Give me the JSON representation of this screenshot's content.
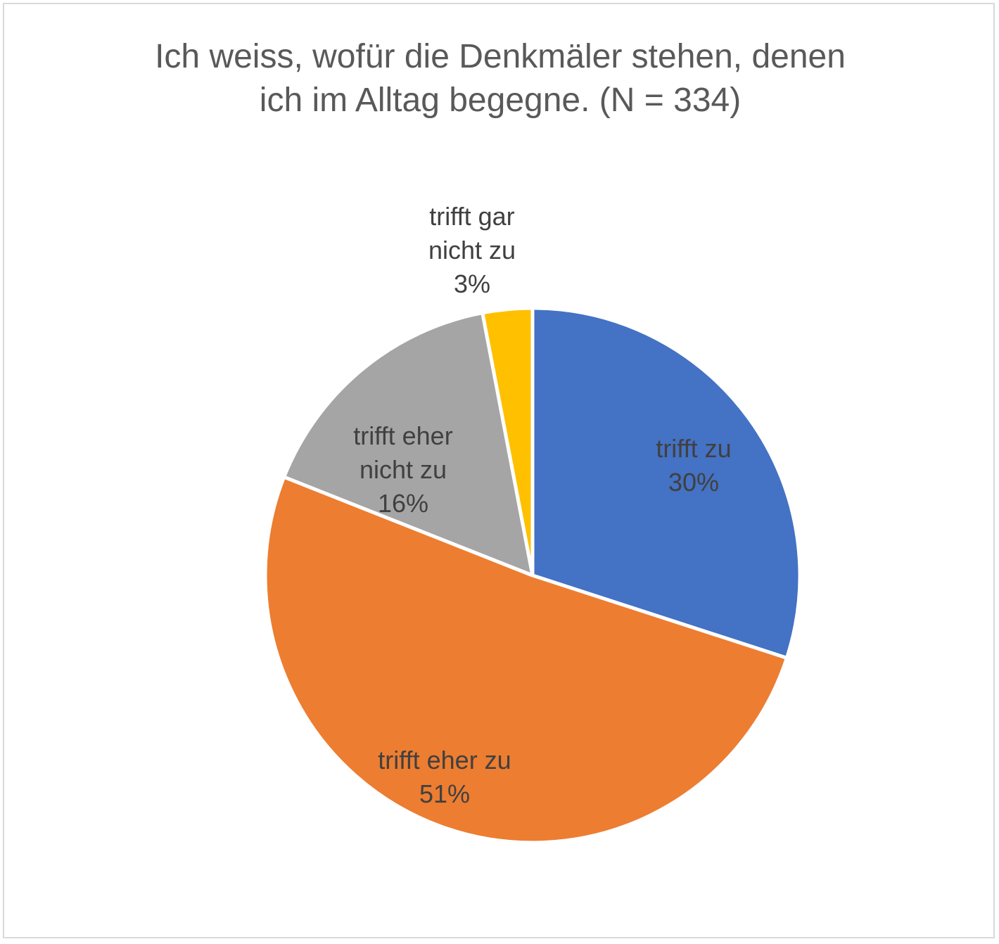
{
  "chart_data": {
    "type": "pie",
    "title_lines": [
      "Ich weiss, wofür die Denkmäler stehen, denen",
      "ich im Alltag begegne. (N = 334)"
    ],
    "categories": [
      "trifft zu",
      "trifft eher zu",
      "trifft eher nicht zu",
      "trifft gar nicht zu"
    ],
    "values": [
      30,
      51,
      16,
      3
    ],
    "unit": "%",
    "start_angle_deg": 0,
    "direction": "clockwise",
    "label_position": "inside",
    "colors": [
      "#4472C4",
      "#ED7D31",
      "#A5A5A5",
      "#FFC000"
    ],
    "slice_border_color": "#FFFFFF",
    "labels": [
      {
        "lines": [
          "trifft zu",
          "30%"
        ]
      },
      {
        "lines": [
          "trifft eher zu",
          "51%"
        ]
      },
      {
        "lines": [
          "trifft eher",
          "nicht zu",
          "16%"
        ]
      },
      {
        "lines": [
          "trifft gar",
          "nicht zu",
          "3%"
        ]
      }
    ]
  }
}
